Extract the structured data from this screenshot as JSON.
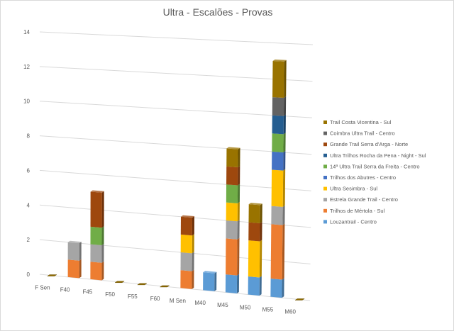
{
  "chart_data": {
    "type": "bar",
    "stacked": true,
    "three_d": true,
    "title": "Ultra - Escalões - Provas",
    "xlabel": "",
    "ylabel": "",
    "ylim": [
      0,
      14
    ],
    "yticks": [
      0,
      2,
      4,
      6,
      8,
      10,
      12,
      14
    ],
    "grid": true,
    "legend_position": "right",
    "categories": [
      "F Sen",
      "F40",
      "F45",
      "F50",
      "F55",
      "F60",
      "M Sen",
      "M40",
      "M45",
      "M50",
      "M55",
      "M60"
    ],
    "series": [
      {
        "name": "Louzantrail - Centro",
        "color": "#5b9bd5",
        "values": [
          0,
          0,
          0,
          0,
          0,
          0,
          0,
          1,
          1,
          1,
          1,
          0
        ]
      },
      {
        "name": "Trilhos de Mértola - Sul",
        "color": "#ed7d31",
        "values": [
          0,
          1,
          1,
          0,
          0,
          0,
          1,
          0,
          2,
          0,
          3,
          0
        ]
      },
      {
        "name": "Estrela Grande Trail - Centro",
        "color": "#a5a5a5",
        "values": [
          0,
          1,
          1,
          0,
          0,
          0,
          1,
          0,
          1,
          0,
          1,
          0
        ]
      },
      {
        "name": "Ultra Sesimbra - Sul",
        "color": "#ffc000",
        "values": [
          0,
          0,
          0,
          0,
          0,
          0,
          1,
          0,
          1,
          2,
          2,
          0
        ]
      },
      {
        "name": "Trilhos dos Abutres - Centro",
        "color": "#4472c4",
        "values": [
          0,
          0,
          0,
          0,
          0,
          0,
          0,
          0,
          0,
          0,
          1,
          0
        ]
      },
      {
        "name": "14ª Ultra Trail Serra da Freita - Centro",
        "color": "#70ad47",
        "values": [
          0,
          0,
          1,
          0,
          0,
          0,
          0,
          0,
          1,
          0,
          1,
          0
        ]
      },
      {
        "name": "Ultra Trilhos Rocha da Pena - Night - Sul",
        "color": "#255e91",
        "values": [
          0,
          0,
          0,
          0,
          0,
          0,
          0,
          0,
          0,
          0,
          1,
          0
        ]
      },
      {
        "name": "Grande Trail Serra d'Arga - Norte",
        "color": "#9e480e",
        "values": [
          0,
          0,
          2,
          0,
          0,
          0,
          1,
          0,
          1,
          1,
          0,
          0
        ]
      },
      {
        "name": "Coimbra Ultra Trail - Centro",
        "color": "#636363",
        "values": [
          0,
          0,
          0,
          0,
          0,
          0,
          0,
          0,
          0,
          0,
          1,
          0
        ]
      },
      {
        "name": "Trail Costa Vicentina - Sul",
        "color": "#997300",
        "values": [
          0,
          0,
          0,
          0,
          0,
          0,
          0,
          0,
          1,
          1,
          2,
          0
        ]
      }
    ]
  }
}
